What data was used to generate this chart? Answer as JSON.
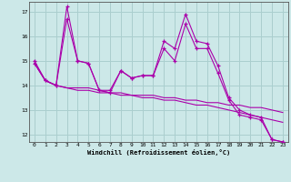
{
  "xlabel": "Windchill (Refroidissement éolien,°C)",
  "x_ticks": [
    0,
    1,
    2,
    3,
    4,
    5,
    6,
    7,
    8,
    9,
    10,
    11,
    12,
    13,
    14,
    15,
    16,
    17,
    18,
    19,
    20,
    21,
    22,
    23
  ],
  "ylim": [
    11.7,
    17.4
  ],
  "yticks": [
    12,
    13,
    14,
    15,
    16,
    17
  ],
  "background_color": "#cce8e8",
  "grid_color": "#aacece",
  "line_color": "#aa00aa",
  "series1": [
    15.0,
    14.2,
    14.0,
    17.2,
    15.0,
    14.9,
    13.8,
    13.8,
    14.6,
    14.3,
    14.4,
    14.4,
    15.8,
    15.5,
    16.9,
    15.8,
    15.7,
    14.8,
    13.5,
    13.0,
    12.8,
    12.7,
    11.8,
    11.7
  ],
  "series2": [
    14.9,
    14.2,
    14.0,
    16.7,
    15.0,
    14.9,
    13.8,
    13.7,
    14.6,
    14.3,
    14.4,
    14.4,
    15.5,
    15.0,
    16.5,
    15.5,
    15.5,
    14.5,
    13.4,
    12.8,
    12.7,
    12.6,
    11.8,
    11.7
  ],
  "series3": [
    14.9,
    14.2,
    14.0,
    13.9,
    13.9,
    13.9,
    13.8,
    13.7,
    13.7,
    13.6,
    13.6,
    13.6,
    13.5,
    13.5,
    13.4,
    13.4,
    13.3,
    13.3,
    13.2,
    13.2,
    13.1,
    13.1,
    13.0,
    12.9
  ],
  "series4": [
    14.9,
    14.2,
    14.0,
    13.9,
    13.8,
    13.8,
    13.7,
    13.7,
    13.6,
    13.6,
    13.5,
    13.5,
    13.4,
    13.4,
    13.3,
    13.2,
    13.2,
    13.1,
    13.0,
    12.9,
    12.8,
    12.7,
    12.6,
    12.5
  ]
}
